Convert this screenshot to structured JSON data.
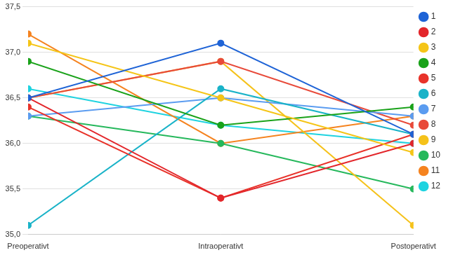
{
  "chart_data": {
    "type": "line",
    "categories": [
      "Preoperativt",
      "Intraoperativt",
      "Postoperativt"
    ],
    "series": [
      {
        "name": "1",
        "color": "#1e63d6",
        "values": [
          36.5,
          37.1,
          36.1
        ]
      },
      {
        "name": "2",
        "color": "#e3262b",
        "values": [
          36.5,
          35.4,
          36.0
        ]
      },
      {
        "name": "3",
        "color": "#f5c518",
        "values": [
          37.1,
          36.5,
          35.9
        ]
      },
      {
        "name": "4",
        "color": "#1aa21a",
        "values": [
          36.9,
          36.2,
          36.4
        ]
      },
      {
        "name": "5",
        "color": "#e8332a",
        "values": [
          36.4,
          35.4,
          36.1
        ]
      },
      {
        "name": "6",
        "color": "#1ab3c8",
        "values": [
          35.1,
          36.6,
          36.1
        ]
      },
      {
        "name": "7",
        "color": "#5b9cf0",
        "values": [
          36.3,
          36.5,
          36.3
        ]
      },
      {
        "name": "8",
        "color": "#e84a3a",
        "values": [
          36.5,
          36.9,
          36.2
        ]
      },
      {
        "name": "9",
        "color": "#f5c21b",
        "values": [
          36.5,
          36.9,
          35.1
        ]
      },
      {
        "name": "10",
        "color": "#26b85c",
        "values": [
          36.3,
          36.0,
          35.5
        ]
      },
      {
        "name": "11",
        "color": "#f5831f",
        "values": [
          37.2,
          36.0,
          36.3
        ]
      },
      {
        "name": "12",
        "color": "#1fd3e0",
        "values": [
          36.6,
          36.2,
          36.0
        ]
      }
    ],
    "ylim": [
      35.0,
      37.5
    ],
    "yticks": [
      {
        "value": 35.0,
        "label": "35,0"
      },
      {
        "value": 35.5,
        "label": "35,5"
      },
      {
        "value": 36.0,
        "label": "36,0"
      },
      {
        "value": 36.5,
        "label": "36,5"
      },
      {
        "value": 37.0,
        "label": "37,0"
      },
      {
        "value": 37.5,
        "label": "37,5"
      }
    ],
    "grid": true,
    "legend": "right",
    "marker": "circle"
  }
}
